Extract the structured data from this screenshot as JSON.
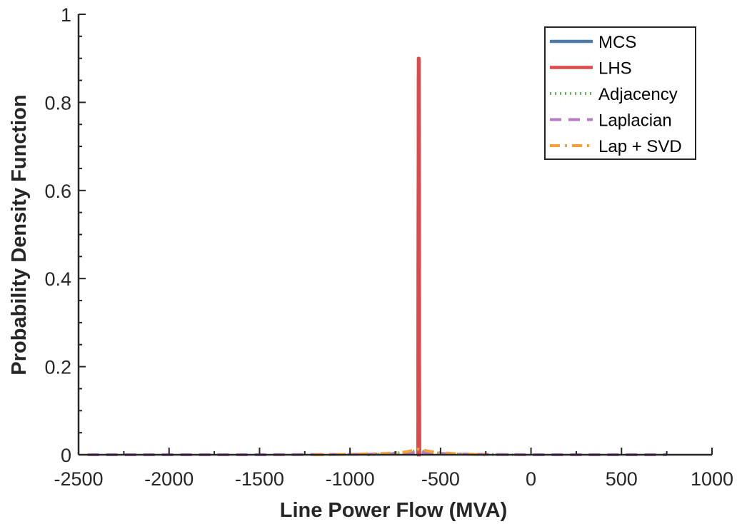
{
  "chart_data": {
    "type": "line",
    "xlabel": "Line Power Flow (MVA)",
    "ylabel": "Probability Density Function",
    "xlim": [
      -2500,
      1000
    ],
    "ylim": [
      0,
      1
    ],
    "x_ticks": [
      -2500,
      -2000,
      -1500,
      -1000,
      -500,
      0,
      500,
      1000
    ],
    "y_ticks": [
      0,
      0.2,
      0.4,
      0.6,
      0.8,
      1
    ],
    "x_tick_labels": [
      "-2500",
      "-2000",
      "-1500",
      "-1000",
      "-500",
      "0",
      "500",
      "1000"
    ],
    "y_tick_labels": [
      "0",
      "0.2",
      "0.4",
      "0.6",
      "0.8",
      "1"
    ],
    "grid": false,
    "legend_position": "top-right",
    "series": [
      {
        "name": "MCS",
        "color": "#4f7ba8",
        "style": "solid",
        "x": [
          -630,
          -625,
          -622,
          -619,
          -616,
          -613,
          -610
        ],
        "y": [
          0,
          0.0,
          0.86,
          0.86,
          0.0,
          0,
          0
        ]
      },
      {
        "name": "LHS",
        "color": "#de4a4a",
        "style": "solid",
        "x": [
          -630,
          -625,
          -622,
          -619,
          -616,
          -613,
          -610
        ],
        "y": [
          0,
          0.0,
          0.9,
          0.9,
          0.0,
          0,
          0
        ]
      },
      {
        "name": "Adjacency",
        "color": "#5fb55f",
        "style": "dotted",
        "x": [
          -900,
          -800,
          -700,
          -650,
          -620,
          -600,
          -550,
          -450,
          -300,
          -100
        ],
        "y": [
          0,
          0.002,
          0.005,
          0.008,
          0.012,
          0.008,
          0.005,
          0.002,
          0.001,
          0
        ]
      },
      {
        "name": "Laplacian",
        "color": "#b57cc5",
        "style": "dashed",
        "x": [
          -2450,
          -1500,
          -900,
          -700,
          -620,
          -540,
          -300,
          0,
          750
        ],
        "y": [
          0,
          0,
          0.001,
          0.003,
          0.006,
          0.003,
          0.001,
          0,
          0
        ]
      },
      {
        "name": "Lap + SVD",
        "color": "#f7a035",
        "style": "dashdot",
        "x": [
          -1200,
          -1000,
          -800,
          -700,
          -650,
          -620,
          -590,
          -520,
          -400,
          -250
        ],
        "y": [
          0,
          0.001,
          0.003,
          0.006,
          0.01,
          0.013,
          0.01,
          0.005,
          0.002,
          0
        ]
      }
    ]
  }
}
